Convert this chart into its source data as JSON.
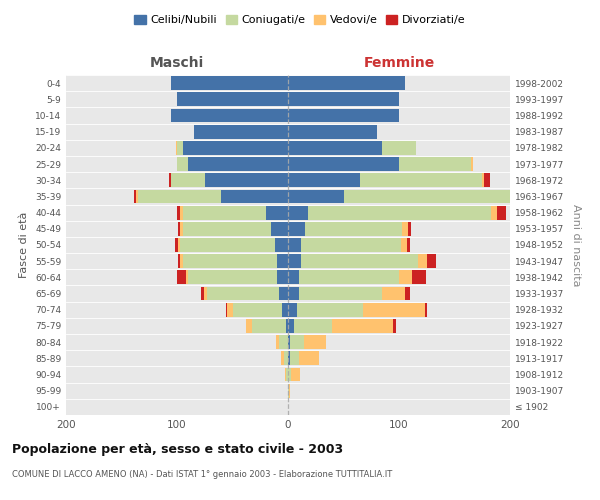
{
  "age_groups": [
    "100+",
    "95-99",
    "90-94",
    "85-89",
    "80-84",
    "75-79",
    "70-74",
    "65-69",
    "60-64",
    "55-59",
    "50-54",
    "45-49",
    "40-44",
    "35-39",
    "30-34",
    "25-29",
    "20-24",
    "15-19",
    "10-14",
    "5-9",
    "0-4"
  ],
  "birth_years": [
    "≤ 1902",
    "1903-1907",
    "1908-1912",
    "1913-1917",
    "1918-1922",
    "1923-1927",
    "1928-1932",
    "1933-1937",
    "1938-1942",
    "1943-1947",
    "1948-1952",
    "1953-1957",
    "1958-1962",
    "1963-1967",
    "1968-1972",
    "1973-1977",
    "1978-1982",
    "1983-1987",
    "1988-1992",
    "1993-1997",
    "1998-2002"
  ],
  "maschi": {
    "celibi": [
      0,
      0,
      0,
      0,
      0,
      2,
      5,
      8,
      10,
      10,
      12,
      15,
      20,
      60,
      75,
      90,
      95,
      85,
      105,
      100,
      105
    ],
    "coniugati": [
      0,
      0,
      2,
      4,
      8,
      30,
      45,
      65,
      80,
      85,
      85,
      80,
      75,
      75,
      30,
      10,
      5,
      0,
      0,
      0,
      0
    ],
    "vedovi": [
      0,
      0,
      1,
      2,
      3,
      6,
      5,
      3,
      2,
      2,
      2,
      2,
      2,
      2,
      0,
      0,
      1,
      0,
      0,
      0,
      0
    ],
    "divorziati": [
      0,
      0,
      0,
      0,
      0,
      0,
      1,
      2,
      8,
      2,
      3,
      2,
      3,
      2,
      2,
      0,
      0,
      0,
      0,
      0,
      0
    ]
  },
  "femmine": {
    "nubili": [
      0,
      0,
      0,
      2,
      2,
      5,
      8,
      10,
      10,
      12,
      12,
      15,
      18,
      50,
      65,
      100,
      85,
      80,
      100,
      100,
      105
    ],
    "coniugate": [
      0,
      1,
      3,
      8,
      12,
      35,
      60,
      75,
      90,
      105,
      90,
      88,
      165,
      160,
      110,
      65,
      30,
      0,
      0,
      0,
      0
    ],
    "vedove": [
      0,
      1,
      8,
      18,
      20,
      55,
      55,
      20,
      12,
      8,
      5,
      5,
      5,
      2,
      2,
      2,
      0,
      0,
      0,
      0,
      0
    ],
    "divorziate": [
      0,
      0,
      0,
      0,
      0,
      2,
      2,
      5,
      12,
      8,
      3,
      3,
      8,
      2,
      5,
      0,
      0,
      0,
      0,
      0,
      0
    ]
  },
  "colors": {
    "celibi": "#4472a8",
    "coniugati": "#c5d9a0",
    "vedovi": "#ffc26e",
    "divorziati": "#cc2222"
  },
  "xlim": 200,
  "title": "Popolazione per età, sesso e stato civile - 2003",
  "subtitle": "COMUNE DI LACCO AMENO (NA) - Dati ISTAT 1° gennaio 2003 - Elaborazione TUTTITALIA.IT",
  "xlabel_left": "Maschi",
  "xlabel_right": "Femmine",
  "ylabel_left": "Fasce di età",
  "ylabel_right": "Anni di nascita",
  "legend_labels": [
    "Celibi/Nubili",
    "Coniugati/e",
    "Vedovi/e",
    "Divorziati/e"
  ],
  "bg_color": "#e8e8e8"
}
